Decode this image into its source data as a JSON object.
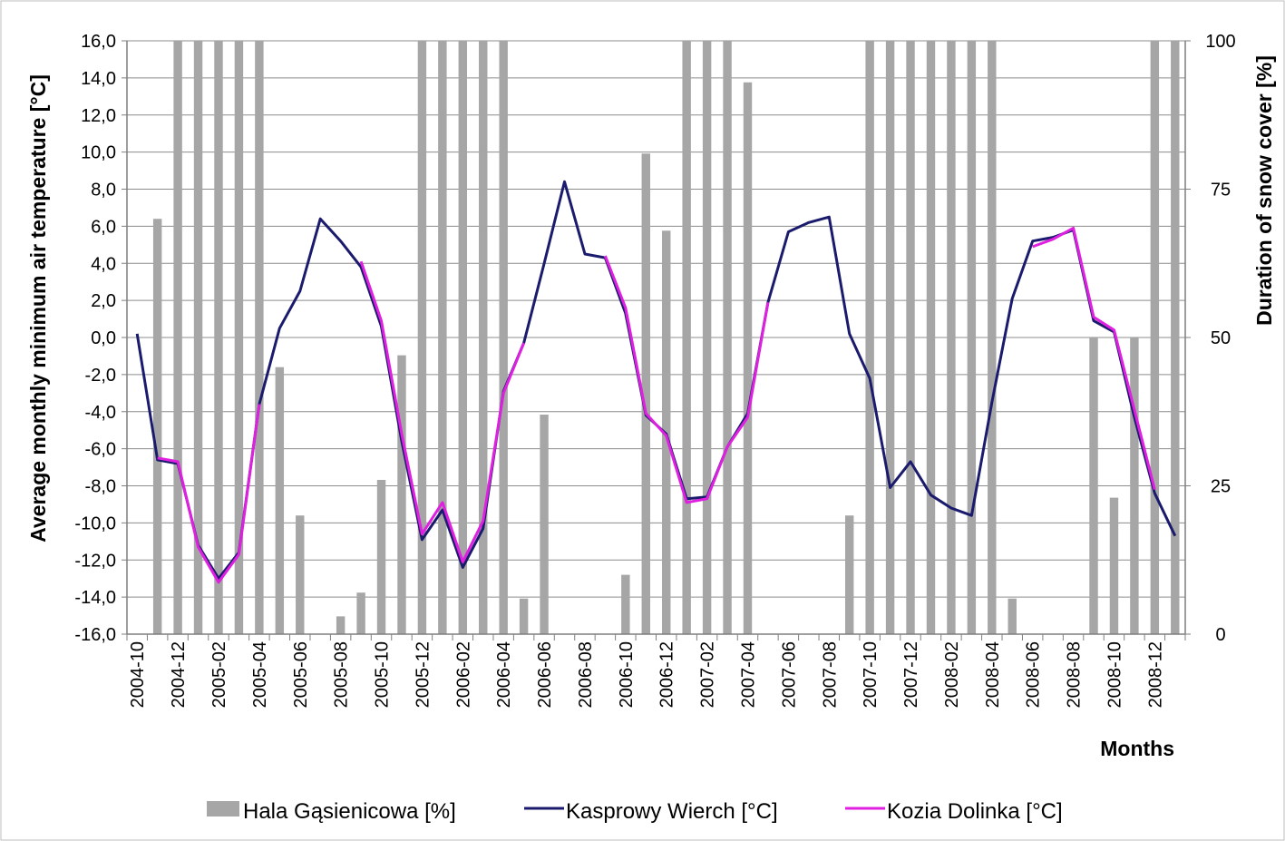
{
  "chart_data": {
    "type": "bar+line",
    "months": [
      "2004-10",
      "2004-11",
      "2004-12",
      "2005-01",
      "2005-02",
      "2005-03",
      "2005-04",
      "2005-05",
      "2005-06",
      "2005-07",
      "2005-08",
      "2005-09",
      "2005-10",
      "2005-11",
      "2005-12",
      "2006-01",
      "2006-02",
      "2006-03",
      "2006-04",
      "2006-05",
      "2006-06",
      "2006-07",
      "2006-08",
      "2006-09",
      "2006-10",
      "2006-11",
      "2006-12",
      "2007-01",
      "2007-02",
      "2007-03",
      "2007-04",
      "2007-05",
      "2007-06",
      "2007-07",
      "2007-08",
      "2007-09",
      "2007-10",
      "2007-11",
      "2007-12",
      "2008-01",
      "2008-02",
      "2008-03",
      "2008-04",
      "2008-05",
      "2008-06",
      "2008-07",
      "2008-08",
      "2008-09",
      "2008-10",
      "2008-11",
      "2008-12",
      "2009-01"
    ],
    "x_tick_labels": [
      "2004-10",
      "2004-12",
      "2005-02",
      "2005-04",
      "2005-06",
      "2005-08",
      "2005-10",
      "2005-12",
      "2006-02",
      "2006-04",
      "2006-06",
      "2006-08",
      "2006-10",
      "2006-12",
      "2007-02",
      "2007-04",
      "2007-06",
      "2007-08",
      "2007-10",
      "2007-12",
      "2008-02",
      "2008-04",
      "2008-06",
      "2008-08",
      "2008-10",
      "2008-12"
    ],
    "xlabel": "Months",
    "ylabel_left": "Average monthly minimum air temperature [°C]",
    "ylabel_right": "Duration of snow cover [%]",
    "ylim_left": [
      -16,
      16
    ],
    "yticks_left": [
      "-16,0",
      "-14,0",
      "-12,0",
      "-10,0",
      "-8,0",
      "-6,0",
      "-4,0",
      "-2,0",
      "0,0",
      "2,0",
      "4,0",
      "6,0",
      "8,0",
      "10,0",
      "12,0",
      "14,0",
      "16,0"
    ],
    "ylim_right": [
      0,
      100
    ],
    "yticks_right": [
      "0",
      "25",
      "50",
      "75",
      "100"
    ],
    "grid": "horizontal",
    "legend_position": "bottom",
    "series": [
      {
        "name": "Hala Gąsienicowa [%]",
        "kind": "bar",
        "axis": "right",
        "color": "#a6a6a6",
        "values": [
          0,
          70,
          100,
          100,
          100,
          100,
          100,
          45,
          20,
          0,
          3,
          7,
          26,
          47,
          100,
          100,
          100,
          100,
          100,
          6,
          37,
          0,
          0,
          0,
          10,
          81,
          68,
          100,
          100,
          100,
          93,
          0,
          0,
          0,
          0,
          20,
          100,
          100,
          100,
          100,
          100,
          100,
          100,
          6,
          0,
          0,
          0,
          50,
          23,
          50,
          100,
          100
        ]
      },
      {
        "name": "Kasprowy Wierch [°C]",
        "kind": "line",
        "axis": "left",
        "color": "#1b1b6e",
        "values": [
          0.2,
          -6.6,
          -6.8,
          -11.2,
          -13.0,
          -11.6,
          -3.6,
          0.5,
          2.5,
          6.4,
          5.2,
          3.8,
          0.6,
          -5.6,
          -10.9,
          -9.3,
          -12.4,
          -10.3,
          -2.9,
          -0.3,
          4.0,
          8.4,
          4.5,
          4.3,
          1.3,
          -4.2,
          -5.2,
          -8.7,
          -8.6,
          -5.9,
          -4.1,
          1.9,
          5.7,
          6.2,
          6.5,
          0.2,
          -2.2,
          -8.1,
          -6.7,
          -8.5,
          -9.2,
          -9.6,
          -3.5,
          2.1,
          5.2,
          5.4,
          5.8,
          0.9,
          0.3,
          -4.3,
          -8.4,
          -10.7
        ]
      },
      {
        "name": "Kozia Dolinka [°C]",
        "kind": "line",
        "axis": "left",
        "color": "#e020e0",
        "start_index": 1,
        "end_index": 50,
        "values": [
          null,
          -6.5,
          -6.7,
          -11.3,
          -13.2,
          -11.7,
          -3.6,
          null,
          null,
          null,
          null,
          4.1,
          0.9,
          -5.2,
          -10.6,
          -8.9,
          -12.1,
          -9.9,
          -3.0,
          -0.3,
          null,
          null,
          null,
          4.4,
          1.6,
          -4.1,
          -5.3,
          -8.9,
          -8.7,
          -5.9,
          -4.3,
          1.9,
          null,
          null,
          null,
          null,
          null,
          null,
          null,
          null,
          null,
          null,
          null,
          null,
          4.9,
          5.3,
          5.9,
          1.1,
          0.4,
          -3.9,
          -8.2,
          null
        ]
      }
    ]
  }
}
